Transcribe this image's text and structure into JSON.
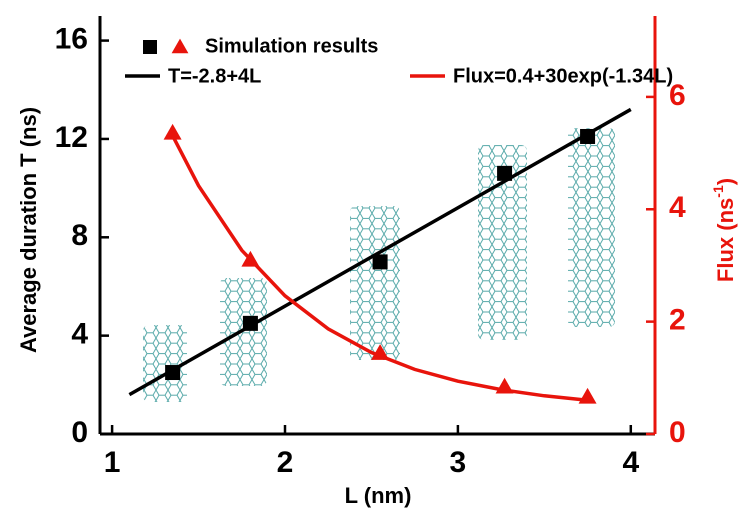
{
  "chart_data": {
    "type": "scatter",
    "xlabel": "L (nm)",
    "ylabel": "Average duration T (ns)",
    "y2label": [
      "Flux (ns",
      "-1",
      ")"
    ],
    "xlim": [
      0.93,
      4.14
    ],
    "xticks": [
      1,
      2,
      3,
      4
    ],
    "ylim": [
      0,
      17
    ],
    "yticks": [
      0,
      4,
      8,
      12,
      16
    ],
    "y2lim": [
      0,
      7.44
    ],
    "y2ticks": [
      0,
      2,
      4,
      6
    ],
    "legend_label": "Simulation results",
    "series": [
      {
        "marker": "square",
        "color": "#000000",
        "x": [
          1.35,
          1.8,
          2.55,
          3.27,
          3.75
        ],
        "values": [
          2.5,
          4.5,
          7.0,
          10.6,
          12.1
        ]
      },
      {
        "marker": "triangle",
        "color": "#e8140c",
        "axis": "y2",
        "x": [
          1.35,
          1.8,
          2.55,
          3.27,
          3.75
        ],
        "values": [
          5.36,
          3.1,
          1.44,
          0.84,
          0.66
        ]
      },
      {
        "marker": "line",
        "name": "T=-2.8+4L",
        "color": "#000000",
        "x": [
          1.1,
          4.0
        ],
        "values": [
          1.6,
          13.2
        ]
      },
      {
        "marker": "line",
        "name": "Flux=0.4+30exp(-1.34L)",
        "color": "#e8140c",
        "axis": "y2",
        "x": [
          1.35,
          1.5,
          1.75,
          2,
          2.25,
          2.5,
          2.75,
          3,
          3.25,
          3.5,
          3.75
        ],
        "values": [
          5.31,
          4.42,
          3.27,
          2.46,
          1.87,
          1.45,
          1.15,
          0.94,
          0.79,
          0.68,
          0.6
        ]
      }
    ]
  }
}
